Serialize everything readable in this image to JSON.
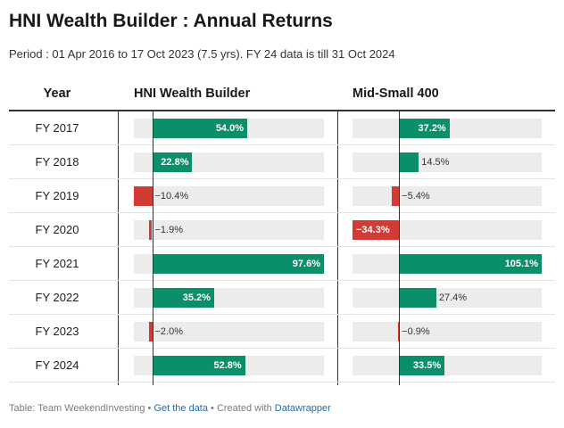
{
  "title": "HNI Wealth Builder : Annual Returns",
  "subtitle": "Period : 01 Apr 2016 to 17 Oct 2023 (7.5 yrs). FY 24 data is till 31 Oct 2024",
  "headers": {
    "year": "Year",
    "hni": "HNI Wealth Builder",
    "midsmall": "Mid-Small 400"
  },
  "colors": {
    "positive": "#0a8f6a",
    "negative": "#d13b34",
    "track": "#ececec"
  },
  "footer": {
    "source": "Table: Team WeekendInvesting",
    "sep1": " • ",
    "get_data": "Get the data",
    "sep2": " • Created with ",
    "tool": "Datawrapper"
  },
  "chart_data": {
    "type": "table",
    "categories": [
      "FY 2017",
      "FY 2018",
      "FY 2019",
      "FY 2020",
      "FY 2021",
      "FY 2022",
      "FY 2023",
      "FY 2024"
    ],
    "series": [
      {
        "name": "HNI Wealth Builder",
        "values": [
          54.0,
          22.8,
          -10.4,
          -1.9,
          97.6,
          35.2,
          -2.0,
          52.8
        ],
        "labels": [
          "54.0%",
          "22.8%",
          "−10.4%",
          "−1.9%",
          "97.6%",
          "35.2%",
          "−2.0%",
          "52.8%"
        ],
        "range": [
          -10.4,
          97.6
        ]
      },
      {
        "name": "Mid-Small 400",
        "values": [
          37.2,
          14.5,
          -5.4,
          -34.3,
          105.1,
          27.4,
          -0.9,
          33.5
        ],
        "labels": [
          "37.2%",
          "14.5%",
          "−5.4%",
          "−34.3%",
          "105.1%",
          "27.4%",
          "−0.9%",
          "33.5%"
        ],
        "range": [
          -34.3,
          105.1
        ]
      }
    ]
  }
}
